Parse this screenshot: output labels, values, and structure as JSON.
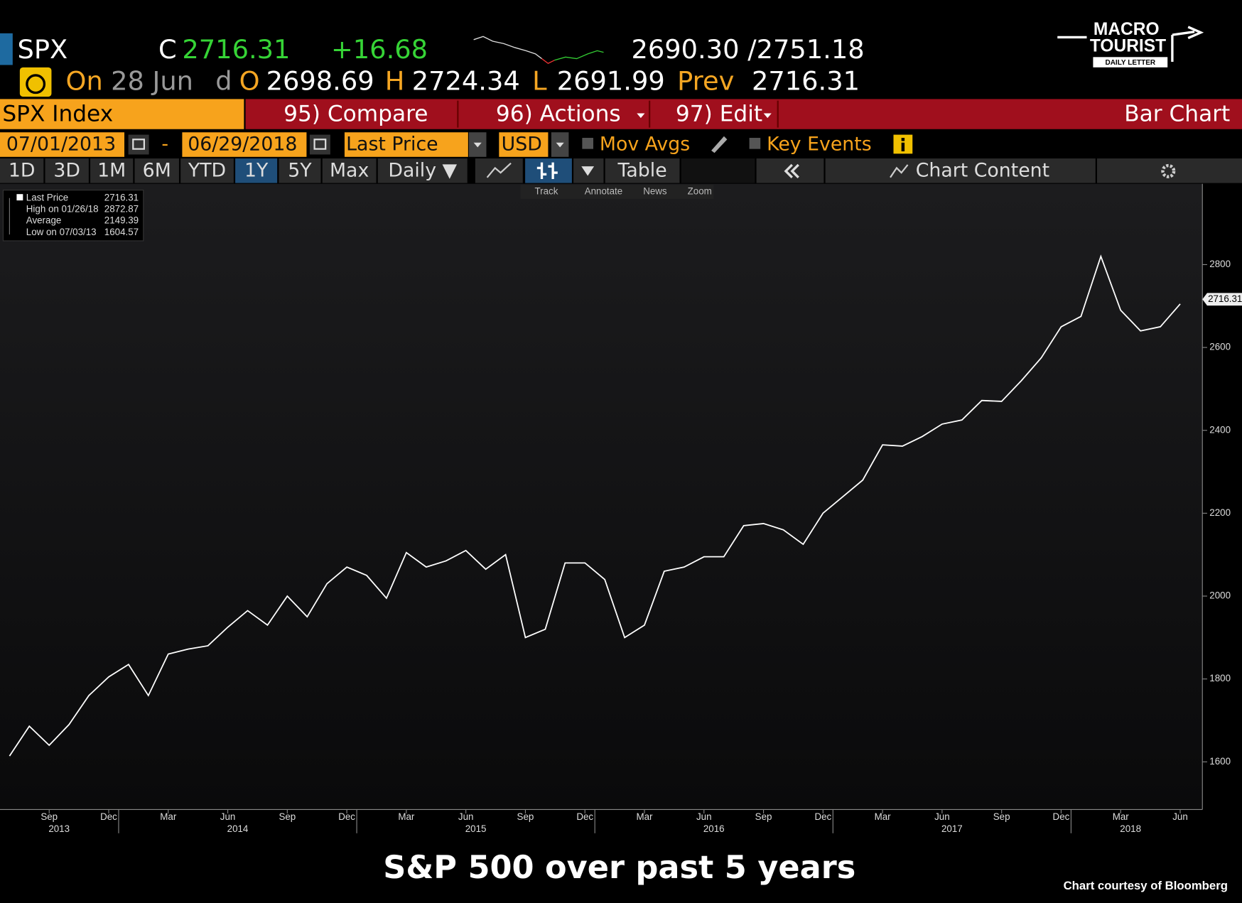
{
  "header": {
    "ticker": "SPX",
    "c_label": "C",
    "last": "2716.31",
    "change": "+16.68",
    "range": "2690.30 /2751.18",
    "on": "On",
    "date": "28 Jun",
    "d": "d",
    "o_label": "O",
    "open": "2698.69",
    "h_label": "H",
    "high": "2724.34",
    "l_label": "L",
    "low": "2691.99",
    "prev_label": "Prev",
    "prev": "2716.31"
  },
  "logo": [
    "MACRO",
    "TOURIST",
    "DAILY LETTER"
  ],
  "menu": [
    "SPX Index",
    "95) Compare",
    "96) Actions",
    "97) Edit",
    "Bar Chart"
  ],
  "controls": {
    "start": "07/01/2013",
    "dash": "-",
    "end": "06/29/2018",
    "field": "Last Price",
    "currency": "USD",
    "mov_avgs": "Mov Avgs",
    "key_events": "Key Events"
  },
  "periods": [
    "1D",
    "3D",
    "1M",
    "6M",
    "YTD",
    "1Y",
    "5Y",
    "Max",
    "Daily ▼"
  ],
  "tools": [
    "Table",
    "Chart Content"
  ],
  "subtools": [
    "Track",
    "Annotate",
    "News",
    "Zoom"
  ],
  "chart_data": {
    "type": "line",
    "title": "S&P 500 over past 5 years",
    "source": "Chart courtesy of Bloomberg",
    "info": [
      {
        "label": "Last Price",
        "value": 2716.31
      },
      {
        "label": "High on 01/26/18",
        "value": 2872.87
      },
      {
        "label": "Average",
        "value": 2149.39
      },
      {
        "label": "Low on 07/03/13",
        "value": 1604.57
      }
    ],
    "x": [
      "2013-07",
      "2013-08",
      "2013-09",
      "2013-10",
      "2013-11",
      "2013-12",
      "2014-01",
      "2014-02",
      "2014-03",
      "2014-04",
      "2014-05",
      "2014-06",
      "2014-07",
      "2014-08",
      "2014-09",
      "2014-10",
      "2014-11",
      "2014-12",
      "2015-01",
      "2015-02",
      "2015-03",
      "2015-04",
      "2015-05",
      "2015-06",
      "2015-07",
      "2015-08",
      "2015-09",
      "2015-10",
      "2015-11",
      "2015-12",
      "2016-01",
      "2016-02",
      "2016-03",
      "2016-04",
      "2016-05",
      "2016-06",
      "2016-07",
      "2016-08",
      "2016-09",
      "2016-10",
      "2016-11",
      "2016-12",
      "2017-01",
      "2017-02",
      "2017-03",
      "2017-04",
      "2017-05",
      "2017-06",
      "2017-07",
      "2017-08",
      "2017-09",
      "2017-10",
      "2017-11",
      "2017-12",
      "2018-01",
      "2018-02",
      "2018-03",
      "2018-04",
      "2018-05",
      "2018-06"
    ],
    "series": [
      {
        "name": "Last Price",
        "color": "#ffffff",
        "values": [
          1614,
          1686,
          1640,
          1690,
          1760,
          1805,
          1835,
          1760,
          1860,
          1872,
          1880,
          1925,
          1965,
          1930,
          2000,
          1950,
          2030,
          2070,
          2050,
          1995,
          2105,
          2070,
          2085,
          2110,
          2065,
          2100,
          1900,
          1920,
          2080,
          2080,
          2040,
          1900,
          1930,
          2060,
          2070,
          2095,
          2095,
          2170,
          2175,
          2160,
          2125,
          2200,
          2240,
          2280,
          2365,
          2362,
          2385,
          2415,
          2425,
          2472,
          2470,
          2520,
          2575,
          2650,
          2675,
          2820,
          2690,
          2640,
          2650,
          2705
        ]
      }
    ],
    "ylim": [
      1485,
      2995
    ],
    "yticks": [
      1600,
      1800,
      2000,
      2200,
      2400,
      2600,
      2800
    ],
    "xticks": [
      {
        "value": "2013-09",
        "label": "Sep"
      },
      {
        "value": "2013-12",
        "label": "Dec"
      },
      {
        "value": "2014-03",
        "label": "Mar"
      },
      {
        "value": "2014-06",
        "label": "Jun"
      },
      {
        "value": "2014-09",
        "label": "Sep"
      },
      {
        "value": "2014-12",
        "label": "Dec"
      },
      {
        "value": "2015-03",
        "label": "Mar"
      },
      {
        "value": "2015-06",
        "label": "Jun"
      },
      {
        "value": "2015-09",
        "label": "Sep"
      },
      {
        "value": "2015-12",
        "label": "Dec"
      },
      {
        "value": "2016-03",
        "label": "Mar"
      },
      {
        "value": "2016-06",
        "label": "Jun"
      },
      {
        "value": "2016-09",
        "label": "Sep"
      },
      {
        "value": "2016-12",
        "label": "Dec"
      },
      {
        "value": "2017-03",
        "label": "Mar"
      },
      {
        "value": "2017-06",
        "label": "Jun"
      },
      {
        "value": "2017-09",
        "label": "Sep"
      },
      {
        "value": "2017-12",
        "label": "Dec"
      },
      {
        "value": "2018-03",
        "label": "Mar"
      },
      {
        "value": "2018-06",
        "label": "Jun"
      }
    ],
    "year_labels": [
      "2013",
      "2014",
      "2015",
      "2016",
      "2017",
      "2018"
    ]
  }
}
